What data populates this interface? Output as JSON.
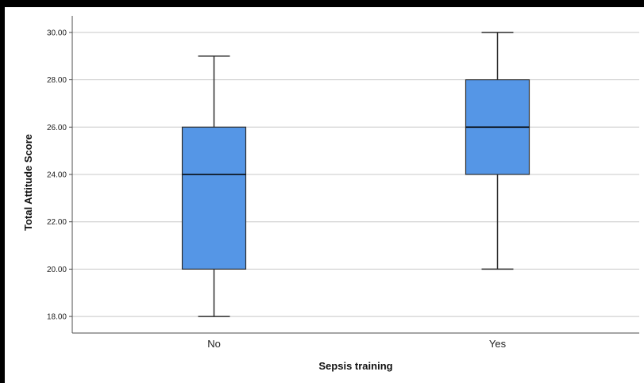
{
  "chart_data": {
    "type": "box",
    "title": "",
    "xlabel": "Sepsis training",
    "ylabel": "Total Attitude Score",
    "ylim": [
      17.3,
      30.7
    ],
    "yticks": [
      "18.00",
      "20.00",
      "22.00",
      "24.00",
      "26.00",
      "28.00",
      "30.00"
    ],
    "grid": true,
    "categories": [
      "No",
      "Yes"
    ],
    "boxes": [
      {
        "category": "No",
        "min": 18,
        "q1": 20,
        "median": 24,
        "q3": 26,
        "max": 29
      },
      {
        "category": "Yes",
        "min": 20,
        "q1": 24,
        "median": 26,
        "q3": 28,
        "max": 30
      }
    ],
    "colors": {
      "box_fill": "#5596e6",
      "box_stroke": "#2d2d2d",
      "gridline": "#c8c8c8",
      "axis": "#4d4d4d"
    }
  }
}
